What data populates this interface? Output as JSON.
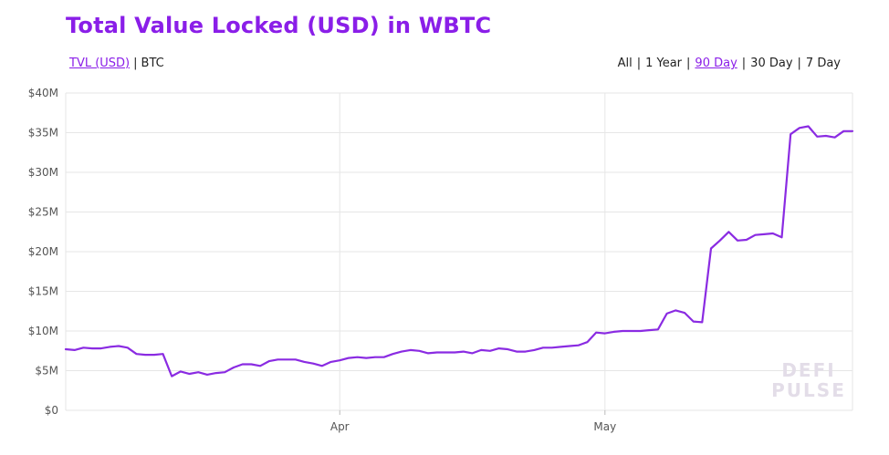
{
  "title": "Total Value Locked (USD) in WBTC",
  "unit_toggle": {
    "tvl_usd": "TVL (USD)",
    "btc": "BTC",
    "active": "tvl_usd"
  },
  "ranges": [
    {
      "label": "All",
      "active": false
    },
    {
      "label": "1 Year",
      "active": false
    },
    {
      "label": "90 Day",
      "active": true
    },
    {
      "label": "30 Day",
      "active": false
    },
    {
      "label": "7 Day",
      "active": false
    }
  ],
  "watermark": {
    "line1": "DEFI",
    "line2": "PULSE"
  },
  "colors": {
    "accent": "#8a1ee8",
    "line": "#8a2be2",
    "grid": "#e6e6e6"
  },
  "chart_data": {
    "type": "line",
    "title": "Total Value Locked (USD) in WBTC",
    "xlabel": "",
    "ylabel": "",
    "ylim": [
      0,
      40
    ],
    "y_ticks": [
      0,
      5,
      10,
      15,
      20,
      25,
      30,
      35,
      40
    ],
    "y_tick_labels": [
      "$0",
      "$5M",
      "$10M",
      "$15M",
      "$20M",
      "$25M",
      "$30M",
      "$35M",
      "$40M"
    ],
    "x_tick_labels": [
      "Apr",
      "May"
    ],
    "x_tick_dates": [
      "2019-04-01",
      "2019-05-01"
    ],
    "xlim": [
      "2019-03-01",
      "2019-05-29"
    ],
    "grid": true,
    "series": [
      {
        "name": "",
        "x": [
          "2019-03-01",
          "2019-03-02",
          "2019-03-03",
          "2019-03-04",
          "2019-03-05",
          "2019-03-06",
          "2019-03-07",
          "2019-03-08",
          "2019-03-09",
          "2019-03-10",
          "2019-03-11",
          "2019-03-12",
          "2019-03-13",
          "2019-03-14",
          "2019-03-15",
          "2019-03-16",
          "2019-03-17",
          "2019-03-18",
          "2019-03-19",
          "2019-03-20",
          "2019-03-21",
          "2019-03-22",
          "2019-03-23",
          "2019-03-24",
          "2019-03-25",
          "2019-03-26",
          "2019-03-27",
          "2019-03-28",
          "2019-03-29",
          "2019-03-30",
          "2019-03-31",
          "2019-04-01",
          "2019-04-02",
          "2019-04-03",
          "2019-04-04",
          "2019-04-05",
          "2019-04-06",
          "2019-04-07",
          "2019-04-08",
          "2019-04-09",
          "2019-04-10",
          "2019-04-11",
          "2019-04-12",
          "2019-04-13",
          "2019-04-14",
          "2019-04-15",
          "2019-04-16",
          "2019-04-17",
          "2019-04-18",
          "2019-04-19",
          "2019-04-20",
          "2019-04-21",
          "2019-04-22",
          "2019-04-23",
          "2019-04-24",
          "2019-04-25",
          "2019-04-26",
          "2019-04-27",
          "2019-04-28",
          "2019-04-29",
          "2019-04-30",
          "2019-05-01",
          "2019-05-02",
          "2019-05-03",
          "2019-05-04",
          "2019-05-05",
          "2019-05-06",
          "2019-05-07",
          "2019-05-08",
          "2019-05-09",
          "2019-05-10",
          "2019-05-11",
          "2019-05-12",
          "2019-05-13",
          "2019-05-14",
          "2019-05-15",
          "2019-05-16",
          "2019-05-17",
          "2019-05-18",
          "2019-05-19",
          "2019-05-20",
          "2019-05-21",
          "2019-05-22",
          "2019-05-23",
          "2019-05-24",
          "2019-05-25",
          "2019-05-26",
          "2019-05-27",
          "2019-05-28",
          "2019-05-29"
        ],
        "y": [
          7.7,
          7.6,
          7.9,
          7.8,
          7.8,
          8.0,
          8.1,
          7.9,
          7.1,
          7.0,
          7.0,
          7.1,
          4.3,
          4.9,
          4.6,
          4.8,
          4.5,
          4.7,
          4.8,
          5.4,
          5.8,
          5.8,
          5.6,
          6.2,
          6.4,
          6.4,
          6.4,
          6.1,
          5.9,
          5.6,
          6.1,
          6.3,
          6.6,
          6.7,
          6.6,
          6.7,
          6.7,
          7.1,
          7.4,
          7.6,
          7.5,
          7.2,
          7.3,
          7.3,
          7.3,
          7.4,
          7.2,
          7.6,
          7.5,
          7.8,
          7.7,
          7.4,
          7.4,
          7.6,
          7.9,
          7.9,
          8.0,
          8.1,
          8.2,
          8.6,
          9.8,
          9.7,
          9.9,
          10.0,
          10.0,
          10.0,
          10.1,
          10.2,
          12.2,
          12.6,
          12.3,
          11.2,
          11.1,
          20.4,
          21.4,
          22.5,
          21.4,
          21.5,
          22.1,
          22.2,
          22.3,
          21.8,
          34.8,
          35.6,
          35.8,
          34.5,
          34.6,
          34.4,
          35.2,
          35.2
        ]
      }
    ]
  }
}
